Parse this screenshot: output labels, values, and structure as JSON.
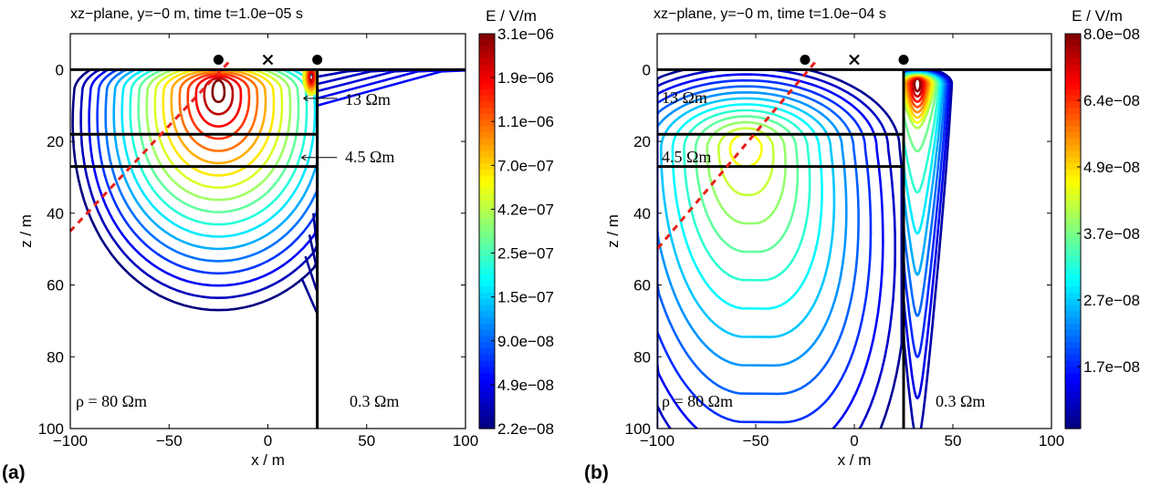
{
  "chart_data": [
    {
      "type": "contour",
      "panel_label": "(a)",
      "title": "xz−plane, y=−0 m, time t=1.0e−05 s",
      "xlabel": "x / m",
      "ylabel": "z / m",
      "xlim": [
        -100,
        100
      ],
      "ylim": [
        100,
        -10
      ],
      "xticks": [
        "−100",
        "−50",
        "0",
        "50",
        "100"
      ],
      "yticks": [
        "0",
        "20",
        "40",
        "60",
        "80",
        "100"
      ],
      "colorbar": {
        "label": "E / V/m",
        "ticks": [
          "3.1e−06",
          "1.9e−06",
          "1.1e−06",
          "7.0e−07",
          "4.2e−07",
          "2.5e−07",
          "1.5e−07",
          "9.0e−08",
          "4.9e−08",
          "2.2e−08"
        ]
      },
      "annotations": [
        "13 Ωm",
        "4.5 Ωm",
        "ρ = 80 Ωm",
        "0.3 Ωm"
      ],
      "markers": [
        {
          "kind": "electrode",
          "x": -25,
          "z": -2
        },
        {
          "kind": "receiver",
          "x": 0,
          "z": -2
        },
        {
          "kind": "electrode",
          "x": 25,
          "z": -2
        }
      ],
      "layer_boundaries_z": [
        0,
        18,
        27
      ],
      "vertical_boundary_x": 25,
      "source_center": {
        "x": -25,
        "z": 6
      }
    },
    {
      "type": "contour",
      "panel_label": "(b)",
      "title": "xz−plane, y=−0 m, time t=1.0e−04 s",
      "xlabel": "x / m",
      "ylabel": "z / m",
      "xlim": [
        -100,
        100
      ],
      "ylim": [
        100,
        -10
      ],
      "xticks": [
        "−100",
        "−50",
        "0",
        "50",
        "100"
      ],
      "yticks": [
        "0",
        "20",
        "40",
        "60",
        "80",
        "100"
      ],
      "colorbar": {
        "label": "E / V/m",
        "ticks": [
          "8.0e−08",
          "6.4e−08",
          "4.9e−08",
          "3.7e−08",
          "2.7e−08",
          "1.7e−08"
        ]
      },
      "annotations": [
        "13 Ωm",
        "4.5 Ωm",
        "ρ = 80 Ωm",
        "0.3 Ωm"
      ],
      "markers": [
        {
          "kind": "electrode",
          "x": -25,
          "z": -2
        },
        {
          "kind": "receiver",
          "x": 0,
          "z": -2
        },
        {
          "kind": "electrode",
          "x": 25,
          "z": -2
        }
      ],
      "layer_boundaries_z": [
        0,
        18,
        27
      ],
      "vertical_boundary_x": 25,
      "hotspot_center": {
        "x": 32,
        "z": 4
      },
      "diffuse_center": {
        "x": -55,
        "z": 22
      }
    }
  ]
}
